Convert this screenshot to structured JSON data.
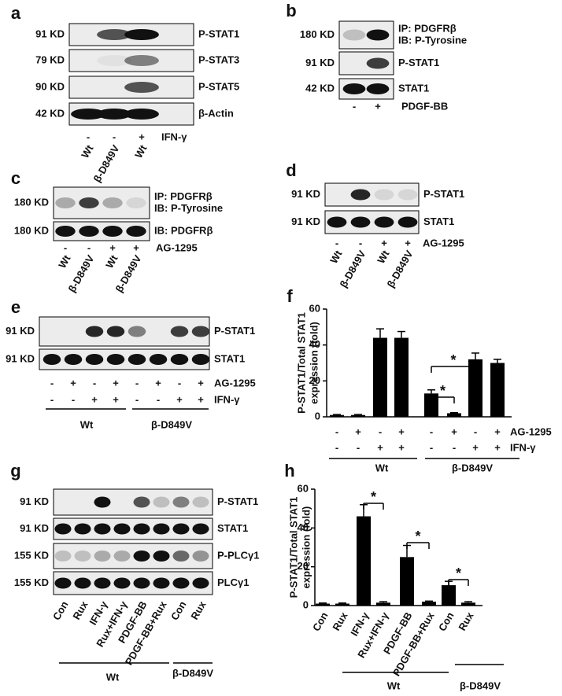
{
  "panels": {
    "a": {
      "label": "a",
      "rows": [
        {
          "size": "91 KD",
          "name": [
            "P-STAT1"
          ]
        },
        {
          "size": "79 KD",
          "name": [
            "P-STAT3"
          ]
        },
        {
          "size": "90 KD",
          "name": [
            "P-STAT5"
          ]
        },
        {
          "size": "42 KD",
          "name": [
            "β-Actin"
          ]
        }
      ],
      "signs": [
        [
          "-",
          "-",
          "+"
        ]
      ],
      "treatments": [
        "IFN-γ"
      ],
      "lanes": [
        "Wt",
        "β-D849V",
        "Wt"
      ]
    },
    "b": {
      "label": "b",
      "rows": [
        {
          "size": "180 KD",
          "name": [
            "IP: PDGFRβ",
            "IB: P-Tyrosine"
          ]
        },
        {
          "size": "91 KD",
          "name": [
            "P-STAT1"
          ]
        },
        {
          "size": "42 KD",
          "name": [
            "STAT1"
          ]
        }
      ],
      "signs": [
        [
          "-",
          "+"
        ]
      ],
      "treatments": [
        "PDGF-BB"
      ]
    },
    "c": {
      "label": "c",
      "rows": [
        {
          "size": "180 KD",
          "name": [
            "IP: PDGFRβ",
            "IB: P-Tyrosine"
          ]
        },
        {
          "size": "180 KD",
          "name": [
            "IB: PDGFRβ"
          ]
        }
      ],
      "signs": [
        [
          "-",
          "-",
          "+",
          "+"
        ]
      ],
      "treatments": [
        "AG-1295"
      ],
      "lanes": [
        "Wt",
        "β-D849V",
        "Wt",
        "β-D849V"
      ]
    },
    "d": {
      "label": "d",
      "rows": [
        {
          "size": "91 KD",
          "name": [
            "P-STAT1"
          ]
        },
        {
          "size": "91 KD",
          "name": [
            "STAT1"
          ]
        }
      ],
      "signs": [
        [
          "-",
          "-",
          "+",
          "+"
        ]
      ],
      "treatments": [
        "AG-1295"
      ],
      "lanes": [
        "Wt",
        "β-D849V",
        "Wt",
        "β-D849V"
      ]
    },
    "e": {
      "label": "e",
      "rows": [
        {
          "size": "91 KD",
          "name": [
            "P-STAT1"
          ]
        },
        {
          "size": "91 KD",
          "name": [
            "STAT1"
          ]
        }
      ],
      "signs": [
        [
          "-",
          "+",
          "-",
          "+",
          "-",
          "+",
          "-",
          "+"
        ],
        [
          "-",
          "-",
          "+",
          "+",
          "-",
          "-",
          "+",
          "+"
        ]
      ],
      "treatments": [
        "AG-1295",
        "IFN-γ"
      ],
      "groups": [
        "Wt",
        "β-D849V"
      ]
    },
    "g": {
      "label": "g",
      "rows": [
        {
          "size": "91 KD",
          "name": [
            "P-STAT1"
          ]
        },
        {
          "size": "91 KD",
          "name": [
            "STAT1"
          ]
        },
        {
          "size": "155 KD",
          "name": [
            "P-PLCγ1"
          ]
        },
        {
          "size": "155 KD",
          "name": [
            "PLCγ1"
          ]
        }
      ],
      "lanes": [
        "Con",
        "Rux",
        "IFN-γ",
        "Rux+IFN-γ",
        "PDGF-BB",
        "PDGF-BB+Rux",
        "Con",
        "Rux"
      ],
      "groups": [
        "Wt",
        "β-D849V"
      ]
    }
  },
  "chart_data": [
    {
      "type": "bar",
      "label": "f",
      "y_label": [
        "P-STAT1/Total STAT1",
        "expression (fold)"
      ],
      "ylim": [
        0,
        60
      ],
      "yticks": [
        0,
        20,
        40,
        60
      ],
      "color": "#000000",
      "values": [
        1,
        1,
        44,
        44,
        13,
        2,
        32,
        30
      ],
      "errors": [
        0.3,
        0.3,
        5,
        3.5,
        2,
        0.3,
        3.5,
        2
      ],
      "signs": [
        [
          "-",
          "+",
          "-",
          "+",
          "-",
          "+",
          "-",
          "+"
        ],
        [
          "-",
          "-",
          "+",
          "+",
          "-",
          "-",
          "+",
          "+"
        ]
      ],
      "treatments": [
        "AG-1295",
        "IFN-γ"
      ],
      "groups": [
        "Wt",
        "β-D849V"
      ],
      "significance": [
        "*",
        "*"
      ]
    },
    {
      "type": "bar",
      "label": "h",
      "y_label": [
        "P-STAT1/Total STAT1",
        "expression (fold)"
      ],
      "ylim": [
        0,
        60
      ],
      "yticks": [
        0,
        20,
        40,
        60
      ],
      "color": "#000000",
      "categories": [
        "Con",
        "Rux",
        "IFN-γ",
        "Rux+IFN-γ",
        "PDGF-BB",
        "PDGF-BB+Rux",
        "Con",
        "Rux"
      ],
      "values": [
        1,
        1,
        46,
        1.5,
        25,
        2,
        10.5,
        1.5
      ],
      "errors": [
        0.3,
        0.3,
        6,
        0.5,
        6,
        0.3,
        2,
        0.5
      ],
      "groups": [
        "Wt",
        "β-D849V"
      ],
      "significance": [
        "*",
        "*",
        "*"
      ]
    }
  ]
}
